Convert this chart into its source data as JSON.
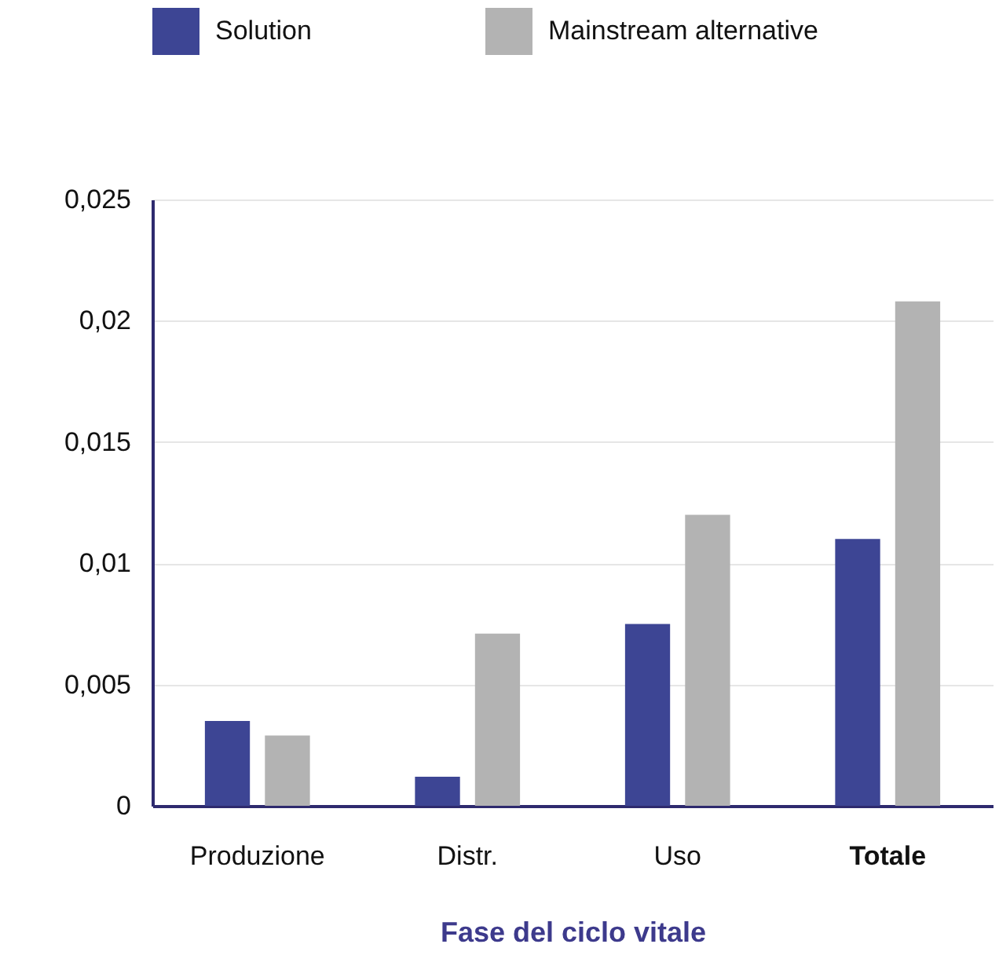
{
  "chart_data": {
    "type": "bar",
    "xlabel": "Fase del ciclo vitale",
    "categories": [
      "Produzione",
      "Distr.",
      "Uso",
      "Totale"
    ],
    "series": [
      {
        "name": "Solution",
        "color": "#3d4594",
        "values": [
          0.0035,
          0.0012,
          0.0075,
          0.011
        ]
      },
      {
        "name": "Mainstream alternative",
        "color": "#b3b3b3",
        "values": [
          0.0029,
          0.0071,
          0.012,
          0.0208
        ]
      }
    ],
    "ylim": [
      0,
      0.025
    ],
    "yticks": [
      {
        "value": 0,
        "label": "0"
      },
      {
        "value": 0.005,
        "label": "0,005"
      },
      {
        "value": 0.01,
        "label": "0,01"
      },
      {
        "value": 0.015,
        "label": "0,015"
      },
      {
        "value": 0.02,
        "label": "0,02"
      },
      {
        "value": 0.025,
        "label": "0,025"
      }
    ],
    "grid": "y",
    "legend": "top"
  }
}
